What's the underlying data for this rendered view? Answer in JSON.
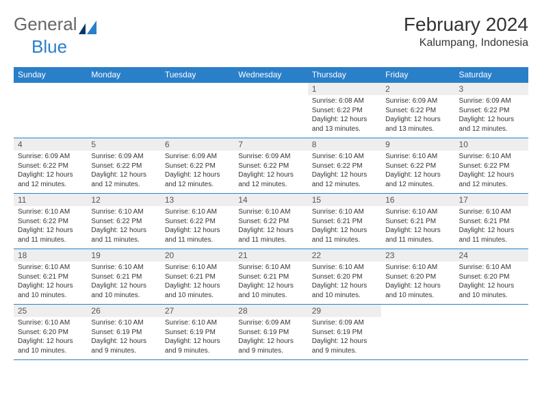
{
  "logo": {
    "text1": "General",
    "text2": "Blue"
  },
  "title": "February 2024",
  "location": "Kalumpang, Indonesia",
  "colors": {
    "header_bg": "#2a7fc9",
    "header_text": "#ffffff",
    "daynum_bg": "#eeeeee",
    "rule": "#2a7fc9",
    "body_text": "#333333"
  },
  "day_headers": [
    "Sunday",
    "Monday",
    "Tuesday",
    "Wednesday",
    "Thursday",
    "Friday",
    "Saturday"
  ],
  "weeks": [
    [
      {
        "n": "",
        "sunrise": "",
        "sunset": "",
        "daylight": ""
      },
      {
        "n": "",
        "sunrise": "",
        "sunset": "",
        "daylight": ""
      },
      {
        "n": "",
        "sunrise": "",
        "sunset": "",
        "daylight": ""
      },
      {
        "n": "",
        "sunrise": "",
        "sunset": "",
        "daylight": ""
      },
      {
        "n": "1",
        "sunrise": "Sunrise: 6:08 AM",
        "sunset": "Sunset: 6:22 PM",
        "daylight": "Daylight: 12 hours and 13 minutes."
      },
      {
        "n": "2",
        "sunrise": "Sunrise: 6:09 AM",
        "sunset": "Sunset: 6:22 PM",
        "daylight": "Daylight: 12 hours and 13 minutes."
      },
      {
        "n": "3",
        "sunrise": "Sunrise: 6:09 AM",
        "sunset": "Sunset: 6:22 PM",
        "daylight": "Daylight: 12 hours and 12 minutes."
      }
    ],
    [
      {
        "n": "4",
        "sunrise": "Sunrise: 6:09 AM",
        "sunset": "Sunset: 6:22 PM",
        "daylight": "Daylight: 12 hours and 12 minutes."
      },
      {
        "n": "5",
        "sunrise": "Sunrise: 6:09 AM",
        "sunset": "Sunset: 6:22 PM",
        "daylight": "Daylight: 12 hours and 12 minutes."
      },
      {
        "n": "6",
        "sunrise": "Sunrise: 6:09 AM",
        "sunset": "Sunset: 6:22 PM",
        "daylight": "Daylight: 12 hours and 12 minutes."
      },
      {
        "n": "7",
        "sunrise": "Sunrise: 6:09 AM",
        "sunset": "Sunset: 6:22 PM",
        "daylight": "Daylight: 12 hours and 12 minutes."
      },
      {
        "n": "8",
        "sunrise": "Sunrise: 6:10 AM",
        "sunset": "Sunset: 6:22 PM",
        "daylight": "Daylight: 12 hours and 12 minutes."
      },
      {
        "n": "9",
        "sunrise": "Sunrise: 6:10 AM",
        "sunset": "Sunset: 6:22 PM",
        "daylight": "Daylight: 12 hours and 12 minutes."
      },
      {
        "n": "10",
        "sunrise": "Sunrise: 6:10 AM",
        "sunset": "Sunset: 6:22 PM",
        "daylight": "Daylight: 12 hours and 12 minutes."
      }
    ],
    [
      {
        "n": "11",
        "sunrise": "Sunrise: 6:10 AM",
        "sunset": "Sunset: 6:22 PM",
        "daylight": "Daylight: 12 hours and 11 minutes."
      },
      {
        "n": "12",
        "sunrise": "Sunrise: 6:10 AM",
        "sunset": "Sunset: 6:22 PM",
        "daylight": "Daylight: 12 hours and 11 minutes."
      },
      {
        "n": "13",
        "sunrise": "Sunrise: 6:10 AM",
        "sunset": "Sunset: 6:22 PM",
        "daylight": "Daylight: 12 hours and 11 minutes."
      },
      {
        "n": "14",
        "sunrise": "Sunrise: 6:10 AM",
        "sunset": "Sunset: 6:22 PM",
        "daylight": "Daylight: 12 hours and 11 minutes."
      },
      {
        "n": "15",
        "sunrise": "Sunrise: 6:10 AM",
        "sunset": "Sunset: 6:21 PM",
        "daylight": "Daylight: 12 hours and 11 minutes."
      },
      {
        "n": "16",
        "sunrise": "Sunrise: 6:10 AM",
        "sunset": "Sunset: 6:21 PM",
        "daylight": "Daylight: 12 hours and 11 minutes."
      },
      {
        "n": "17",
        "sunrise": "Sunrise: 6:10 AM",
        "sunset": "Sunset: 6:21 PM",
        "daylight": "Daylight: 12 hours and 11 minutes."
      }
    ],
    [
      {
        "n": "18",
        "sunrise": "Sunrise: 6:10 AM",
        "sunset": "Sunset: 6:21 PM",
        "daylight": "Daylight: 12 hours and 10 minutes."
      },
      {
        "n": "19",
        "sunrise": "Sunrise: 6:10 AM",
        "sunset": "Sunset: 6:21 PM",
        "daylight": "Daylight: 12 hours and 10 minutes."
      },
      {
        "n": "20",
        "sunrise": "Sunrise: 6:10 AM",
        "sunset": "Sunset: 6:21 PM",
        "daylight": "Daylight: 12 hours and 10 minutes."
      },
      {
        "n": "21",
        "sunrise": "Sunrise: 6:10 AM",
        "sunset": "Sunset: 6:21 PM",
        "daylight": "Daylight: 12 hours and 10 minutes."
      },
      {
        "n": "22",
        "sunrise": "Sunrise: 6:10 AM",
        "sunset": "Sunset: 6:20 PM",
        "daylight": "Daylight: 12 hours and 10 minutes."
      },
      {
        "n": "23",
        "sunrise": "Sunrise: 6:10 AM",
        "sunset": "Sunset: 6:20 PM",
        "daylight": "Daylight: 12 hours and 10 minutes."
      },
      {
        "n": "24",
        "sunrise": "Sunrise: 6:10 AM",
        "sunset": "Sunset: 6:20 PM",
        "daylight": "Daylight: 12 hours and 10 minutes."
      }
    ],
    [
      {
        "n": "25",
        "sunrise": "Sunrise: 6:10 AM",
        "sunset": "Sunset: 6:20 PM",
        "daylight": "Daylight: 12 hours and 10 minutes."
      },
      {
        "n": "26",
        "sunrise": "Sunrise: 6:10 AM",
        "sunset": "Sunset: 6:19 PM",
        "daylight": "Daylight: 12 hours and 9 minutes."
      },
      {
        "n": "27",
        "sunrise": "Sunrise: 6:10 AM",
        "sunset": "Sunset: 6:19 PM",
        "daylight": "Daylight: 12 hours and 9 minutes."
      },
      {
        "n": "28",
        "sunrise": "Sunrise: 6:09 AM",
        "sunset": "Sunset: 6:19 PM",
        "daylight": "Daylight: 12 hours and 9 minutes."
      },
      {
        "n": "29",
        "sunrise": "Sunrise: 6:09 AM",
        "sunset": "Sunset: 6:19 PM",
        "daylight": "Daylight: 12 hours and 9 minutes."
      },
      {
        "n": "",
        "sunrise": "",
        "sunset": "",
        "daylight": ""
      },
      {
        "n": "",
        "sunrise": "",
        "sunset": "",
        "daylight": ""
      }
    ]
  ]
}
